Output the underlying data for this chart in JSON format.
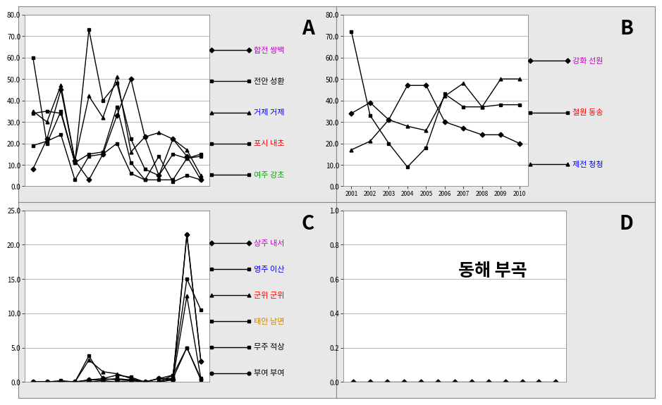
{
  "panel_A": {
    "label": "A",
    "ylim": [
      0,
      80
    ],
    "yticks": [
      0,
      10,
      20,
      30,
      40,
      50,
      60,
      70,
      80
    ],
    "series": [
      {
        "name": "합전 쌍백",
        "name_color": "#cc00cc",
        "color": "#000000",
        "marker": "D",
        "values": [
          8,
          22,
          45,
          12,
          3,
          15,
          33,
          50,
          23,
          5,
          22,
          14,
          3
        ]
      },
      {
        "name": "전안 성환",
        "name_color": "#000000",
        "color": "#000000",
        "marker": "s",
        "values": [
          60,
          20,
          35,
          11,
          73,
          40,
          48,
          22,
          8,
          5,
          15,
          13,
          14
        ]
      },
      {
        "name": "거제 거제",
        "name_color": "#0000ff",
        "color": "#000000",
        "marker": "^",
        "values": [
          35,
          30,
          47,
          12,
          42,
          32,
          51,
          16,
          23,
          25,
          22,
          17,
          5
        ]
      },
      {
        "name": "포시 내초",
        "name_color": "#ff0000",
        "color": "#000000",
        "marker": "s",
        "values": [
          19,
          21,
          24,
          3,
          14,
          15,
          20,
          6,
          3,
          14,
          2,
          5,
          3
        ]
      },
      {
        "name": "여주 강초",
        "name_color": "#00aa00",
        "color": "#000000",
        "marker": "s",
        "values": [
          34,
          35,
          34,
          11,
          15,
          16,
          37,
          11,
          3,
          3,
          3,
          13,
          15
        ]
      }
    ]
  },
  "panel_B": {
    "label": "B",
    "ylim": [
      0,
      80
    ],
    "yticks": [
      0,
      10,
      20,
      30,
      40,
      50,
      60,
      70,
      80
    ],
    "xticklabels": [
      "2001",
      "2002",
      "2003",
      "2004",
      "2005",
      "2006",
      "2007",
      "2008",
      "2009",
      "2010"
    ],
    "series": [
      {
        "name": "강화 선원",
        "name_color": "#cc00cc",
        "color": "#000000",
        "marker": "D",
        "values": [
          34,
          39,
          31,
          47,
          47,
          30,
          27,
          24,
          24,
          20
        ]
      },
      {
        "name": "철원 동송",
        "name_color": "#ff0000",
        "color": "#000000",
        "marker": "s",
        "values": [
          72,
          33,
          20,
          9,
          18,
          43,
          37,
          37,
          38,
          38
        ]
      },
      {
        "name": "제전 청청",
        "name_color": "#0000ff",
        "color": "#000000",
        "marker": "^",
        "values": [
          17,
          21,
          31,
          28,
          26,
          42,
          48,
          37,
          50,
          50
        ]
      }
    ]
  },
  "panel_C": {
    "label": "C",
    "ylim": [
      0,
      25
    ],
    "yticks": [
      0,
      5,
      10,
      15,
      20,
      25
    ],
    "series": [
      {
        "name": "상주 내서",
        "name_color": "#cc00cc",
        "color": "#000000",
        "marker": "D",
        "values": [
          0,
          0,
          0,
          0,
          0.3,
          0.5,
          0.3,
          0.3,
          0,
          0.5,
          0.3,
          21.5,
          3
        ]
      },
      {
        "name": "영주 이산",
        "name_color": "#0000ff",
        "color": "#000000",
        "marker": "s",
        "values": [
          0,
          0,
          0.2,
          0,
          3.8,
          0.5,
          1,
          0.7,
          0,
          0,
          1,
          15,
          10.5
        ]
      },
      {
        "name": "군위 군위",
        "name_color": "#ff0000",
        "color": "#000000",
        "marker": "^",
        "values": [
          0,
          0,
          0,
          0,
          3.2,
          1.5,
          1.2,
          0.5,
          0,
          0,
          0.3,
          12.5,
          0.5
        ]
      },
      {
        "name": "태안 남면",
        "name_color": "#cc8800",
        "color": "#000000",
        "marker": "s",
        "values": [
          0,
          0,
          0,
          0,
          0.3,
          0.3,
          0.5,
          0.3,
          0,
          0.5,
          0.5,
          5,
          0.5
        ]
      },
      {
        "name": "무주 적상",
        "name_color": "#000000",
        "color": "#000000",
        "marker": "s",
        "values": [
          0,
          0,
          0,
          0,
          0,
          0.2,
          0,
          0.2,
          0,
          0.5,
          1,
          5,
          0.3
        ]
      },
      {
        "name": "부여 부여",
        "name_color": "#000000",
        "color": "#000000",
        "marker": "o",
        "values": [
          0,
          0,
          0,
          0,
          0,
          0,
          0,
          0,
          0,
          0,
          0.5,
          21.5,
          3
        ]
      }
    ]
  },
  "panel_D": {
    "label": "D",
    "title": "동해 부곡",
    "title_color": "#000000",
    "ylim": [
      0,
      1.0
    ],
    "yticks": [
      0.0,
      0.2,
      0.4,
      0.6,
      0.8,
      1.0
    ],
    "series": [
      {
        "name": "동해 부곡",
        "color": "#000000",
        "marker": "D",
        "values": [
          0,
          0,
          0,
          0,
          0,
          0,
          0,
          0,
          0,
          0,
          0,
          0,
          0
        ]
      }
    ]
  },
  "background_color": "#ffffff",
  "panel_bg": "#ffffff",
  "outer_bg": "#e8e8e8",
  "grid_color": "#aaaaaa",
  "tick_fontsize": 7,
  "legend_fontsize": 8,
  "panel_label_fontsize": 20,
  "title_D_fontsize": 18
}
